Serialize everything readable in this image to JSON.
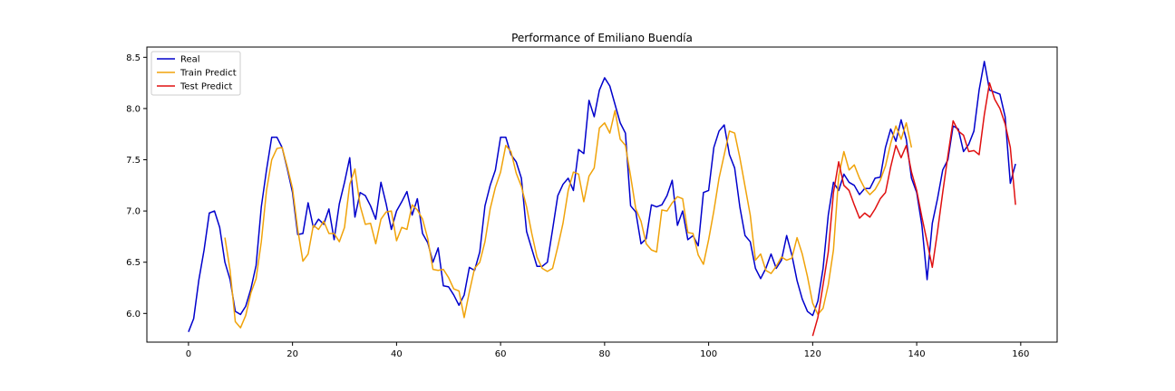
{
  "chart_data": {
    "type": "line",
    "title": "Performance of Emiliano Buendía",
    "xlabel": "",
    "ylabel": "",
    "xlim": [
      -8,
      167
    ],
    "ylim": [
      5.72,
      8.6
    ],
    "xticks": [
      0,
      20,
      40,
      60,
      80,
      100,
      120,
      140,
      160
    ],
    "yticks": [
      6.0,
      6.5,
      7.0,
      7.5,
      8.0,
      8.5
    ],
    "grid": false,
    "legend_position": "top-left",
    "series": [
      {
        "name": "Real",
        "color": "#0000cc",
        "x_start": 0,
        "values": [
          5.82,
          5.95,
          6.33,
          6.62,
          6.98,
          7.0,
          6.84,
          6.5,
          6.33,
          6.02,
          5.99,
          6.07,
          6.24,
          6.47,
          7.04,
          7.4,
          7.72,
          7.72,
          7.62,
          7.41,
          7.18,
          6.77,
          6.78,
          7.08,
          6.84,
          6.92,
          6.87,
          7.02,
          6.72,
          7.07,
          7.28,
          7.52,
          6.94,
          7.18,
          7.15,
          7.05,
          6.92,
          7.28,
          7.07,
          6.82,
          7.0,
          7.09,
          7.19,
          6.96,
          7.12,
          6.78,
          6.69,
          6.5,
          6.64,
          6.27,
          6.26,
          6.18,
          6.08,
          6.18,
          6.45,
          6.42,
          6.6,
          7.05,
          7.25,
          7.4,
          7.72,
          7.72,
          7.55,
          7.48,
          7.32,
          6.8,
          6.63,
          6.46,
          6.46,
          6.5,
          6.82,
          7.15,
          7.26,
          7.32,
          7.2,
          7.6,
          7.56,
          8.08,
          7.92,
          8.18,
          8.3,
          8.22,
          8.04,
          7.86,
          7.76,
          7.05,
          6.99,
          6.68,
          6.73,
          7.06,
          7.04,
          7.06,
          7.15,
          7.3,
          6.86,
          7.0,
          6.72,
          6.76,
          6.66,
          7.18,
          7.2,
          7.62,
          7.78,
          7.84,
          7.55,
          7.42,
          7.04,
          6.76,
          6.7,
          6.44,
          6.34,
          6.44,
          6.58,
          6.44,
          6.52,
          6.76,
          6.57,
          6.32,
          6.14,
          6.02,
          5.98,
          6.12,
          6.44,
          6.96,
          7.28,
          7.2,
          7.36,
          7.28,
          7.25,
          7.16,
          7.22,
          7.22,
          7.32,
          7.33,
          7.62,
          7.8,
          7.68,
          7.89,
          7.7,
          7.32,
          7.18,
          6.86,
          6.33,
          6.88,
          7.12,
          7.4,
          7.5,
          7.83,
          7.8,
          7.58,
          7.65,
          7.78,
          8.18,
          8.46,
          8.18,
          8.16,
          8.14,
          7.92,
          7.27,
          7.46
        ]
      },
      {
        "name": "Train Predict",
        "color": "#f0a30a",
        "x_start": 7,
        "values": [
          6.74,
          6.42,
          5.92,
          5.86,
          5.98,
          6.2,
          6.34,
          6.7,
          7.2,
          7.5,
          7.61,
          7.62,
          7.43,
          7.22,
          6.82,
          6.51,
          6.58,
          6.86,
          6.82,
          6.9,
          6.78,
          6.78,
          6.7,
          6.84,
          7.26,
          7.41,
          7.05,
          6.87,
          6.88,
          6.68,
          6.92,
          6.99,
          7.0,
          6.71,
          6.84,
          6.82,
          7.06,
          7.01,
          6.92,
          6.73,
          6.43,
          6.42,
          6.43,
          6.35,
          6.24,
          6.22,
          5.96,
          6.21,
          6.44,
          6.5,
          6.7,
          7.02,
          7.23,
          7.38,
          7.64,
          7.58,
          7.37,
          7.24,
          7.04,
          6.78,
          6.55,
          6.44,
          6.41,
          6.44,
          6.65,
          6.88,
          7.2,
          7.38,
          7.36,
          7.09,
          7.34,
          7.42,
          7.81,
          7.86,
          7.76,
          7.98,
          7.7,
          7.64,
          7.34,
          7.02,
          6.9,
          6.68,
          6.62,
          6.6,
          7.01,
          7.0,
          7.08,
          7.14,
          7.12,
          6.79,
          6.78,
          6.57,
          6.48,
          6.72,
          7.0,
          7.32,
          7.55,
          7.78,
          7.76,
          7.52,
          7.24,
          6.96,
          6.52,
          6.58,
          6.42,
          6.39,
          6.46,
          6.55,
          6.52,
          6.54,
          6.74,
          6.58,
          6.36,
          6.1,
          5.99,
          6.05,
          6.28,
          6.62,
          7.34,
          7.58,
          7.4,
          7.45,
          7.32,
          7.22,
          7.16,
          7.21,
          7.3,
          7.44,
          7.66,
          7.83,
          7.7,
          7.86,
          7.62
        ]
      },
      {
        "name": "Test Predict",
        "color": "#e01010",
        "x_start": 120,
        "values": [
          5.78,
          5.96,
          6.28,
          6.6,
          7.18,
          7.48,
          7.25,
          7.2,
          7.06,
          6.93,
          6.98,
          6.94,
          7.02,
          7.12,
          7.18,
          7.43,
          7.64,
          7.52,
          7.64,
          7.38,
          7.2,
          6.94,
          6.7,
          6.45,
          6.8,
          7.18,
          7.54,
          7.88,
          7.78,
          7.74,
          7.58,
          7.59,
          7.55,
          7.94,
          8.25,
          8.09,
          8.0,
          7.85,
          7.62,
          7.06
        ]
      }
    ]
  }
}
